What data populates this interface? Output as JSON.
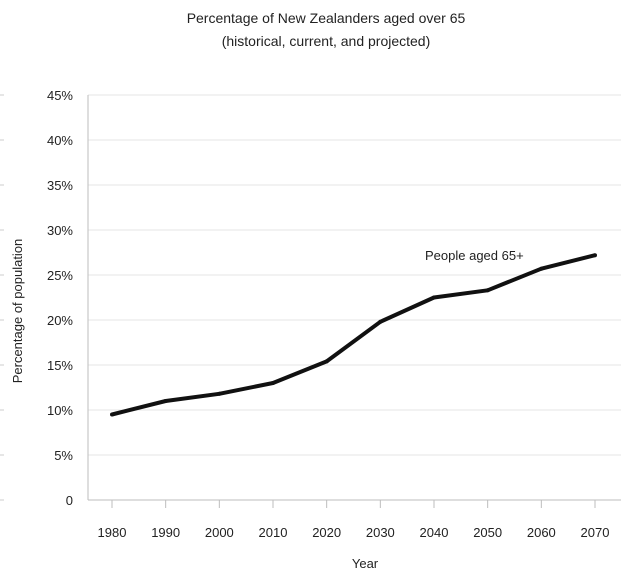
{
  "chart_data": {
    "type": "line",
    "title": [
      "Percentage of New Zealanders aged over 65",
      "(historical, current, and projected)"
    ],
    "xlabel": "Year",
    "ylabel": "Percentage of population",
    "x": [
      1980,
      1990,
      2000,
      2010,
      2020,
      2030,
      2040,
      2050,
      2060,
      2070
    ],
    "series": [
      {
        "name": "People aged 65+",
        "values": [
          9.5,
          11.0,
          11.8,
          13.0,
          15.4,
          19.8,
          22.5,
          23.3,
          25.7,
          27.2
        ],
        "color": "#111111"
      }
    ],
    "ylim": [
      0,
      45
    ],
    "yticks": [
      0,
      5,
      10,
      15,
      20,
      25,
      30,
      35,
      40,
      45
    ],
    "ytick_labels": [
      "0",
      "5%",
      "10%",
      "15%",
      "20%",
      "25%",
      "30%",
      "35%",
      "40%",
      "45%"
    ],
    "xtick_labels": [
      "1980",
      "1990",
      "2000",
      "2010",
      "2020",
      "2030",
      "2040",
      "2050",
      "2060",
      "2070"
    ],
    "annotation": "People aged 65+",
    "grid": true,
    "legend": "none"
  }
}
